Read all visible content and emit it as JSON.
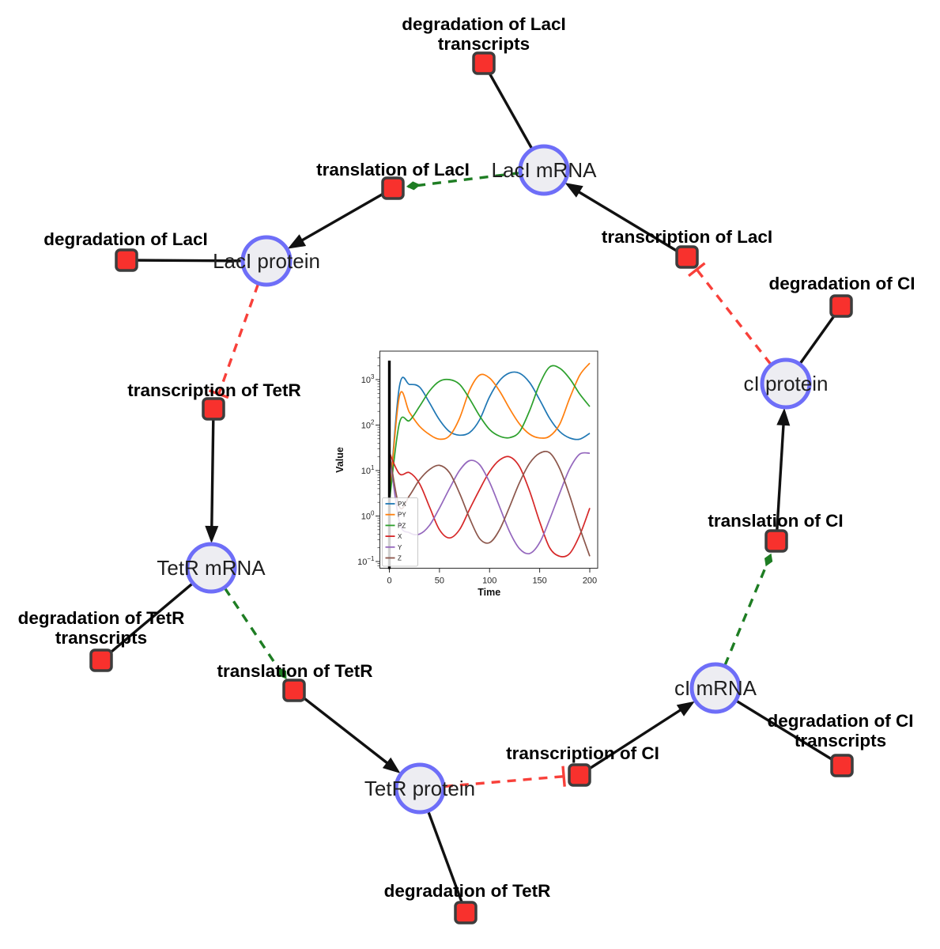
{
  "diagram": {
    "title": "repressilator reaction network",
    "species": {
      "laci_mrna": {
        "label": "LacI mRNA"
      },
      "laci_protein": {
        "label": "LacI protein"
      },
      "tetr_mrna": {
        "label": "TetR mRNA"
      },
      "tetr_protein": {
        "label": "TetR protein"
      },
      "ci_mrna": {
        "label": "cI mRNA"
      },
      "ci_protein": {
        "label": "cI protein"
      }
    },
    "reactions": {
      "deg_laci_tx": {
        "line1": "degradation of LacI",
        "line2": "transcripts"
      },
      "tl_laci": {
        "label": "translation of LacI"
      },
      "tc_laci": {
        "label": "transcription of LacI"
      },
      "deg_laci": {
        "label": "degradation of LacI"
      },
      "deg_ci": {
        "label": "degradation of CI"
      },
      "tc_tetr": {
        "label": "transcription of TetR"
      },
      "tl_ci": {
        "label": "translation of CI"
      },
      "deg_tetr_tx": {
        "line1": "degradation of TetR",
        "line2": "transcripts"
      },
      "tl_tetr": {
        "label": "translation of TetR"
      },
      "deg_ci_tx": {
        "line1": "degradation of CI",
        "line2": "transcripts"
      },
      "tc_ci": {
        "label": "transcription of CI"
      },
      "deg_tetr": {
        "label": "degradation of TetR"
      }
    },
    "colors": {
      "species_fill": "#ededf2",
      "species_border": "#6e6ef8",
      "reaction_fill": "#f8312d",
      "reaction_border": "#3d3d3d",
      "edge_black": "#111111",
      "edge_green": "#1e7d23",
      "edge_red": "#f8403a"
    }
  },
  "chart_data": {
    "type": "line",
    "title": "",
    "xlabel": "Time",
    "ylabel": "Value",
    "yscale": "log",
    "grid": false,
    "legend_position": "lower left",
    "xticks": [
      0,
      50,
      100,
      150,
      200
    ],
    "ytick_exponents": [
      -1,
      0,
      1,
      2,
      3
    ],
    "xlim": [
      -9.5,
      208
    ],
    "ylim": [
      0.07,
      4000
    ],
    "event_line_x": 0,
    "x": [
      0,
      10,
      20,
      30,
      40,
      50,
      60,
      70,
      80,
      90,
      100,
      110,
      120,
      130,
      140,
      150,
      160,
      170,
      180,
      190,
      200
    ],
    "series": [
      {
        "name": "PX",
        "color": "#1f77b4",
        "values": [
          2,
          700,
          780,
          690,
          310,
          130,
          72,
          60,
          68,
          130,
          420,
          950,
          1400,
          1380,
          860,
          360,
          140,
          72,
          52,
          49,
          66
        ]
      },
      {
        "name": "PY",
        "color": "#ff7f0e",
        "values": [
          2,
          430,
          190,
          95,
          62,
          49,
          58,
          140,
          580,
          1250,
          1080,
          560,
          230,
          105,
          63,
          52,
          57,
          105,
          390,
          1250,
          2300
        ]
      },
      {
        "name": "PZ",
        "color": "#2ca02c",
        "values": [
          2,
          110,
          125,
          255,
          560,
          920,
          1000,
          790,
          380,
          160,
          80,
          57,
          53,
          72,
          210,
          800,
          1900,
          1780,
          1050,
          480,
          255
        ]
      },
      {
        "name": "X",
        "color": "#d62728",
        "values": [
          25,
          8.5,
          9,
          5.2,
          1.6,
          0.5,
          0.33,
          0.5,
          1.4,
          3.8,
          9.5,
          17,
          20,
          12,
          3.5,
          0.75,
          0.2,
          0.13,
          0.15,
          0.38,
          1.5
        ]
      },
      {
        "name": "Y",
        "color": "#9467bd",
        "values": [
          25,
          0.75,
          0.43,
          0.4,
          0.62,
          1.5,
          4,
          10,
          16.5,
          13.5,
          5.5,
          1.6,
          0.45,
          0.19,
          0.15,
          0.26,
          0.85,
          3.2,
          11,
          23,
          24
        ]
      },
      {
        "name": "Z",
        "color": "#8c564b",
        "values": [
          25,
          1.6,
          2.8,
          6.2,
          10.5,
          13,
          9,
          3.2,
          0.9,
          0.32,
          0.26,
          0.5,
          1.6,
          5.5,
          14.5,
          24,
          24.5,
          11,
          2.8,
          0.55,
          0.13
        ]
      }
    ]
  }
}
